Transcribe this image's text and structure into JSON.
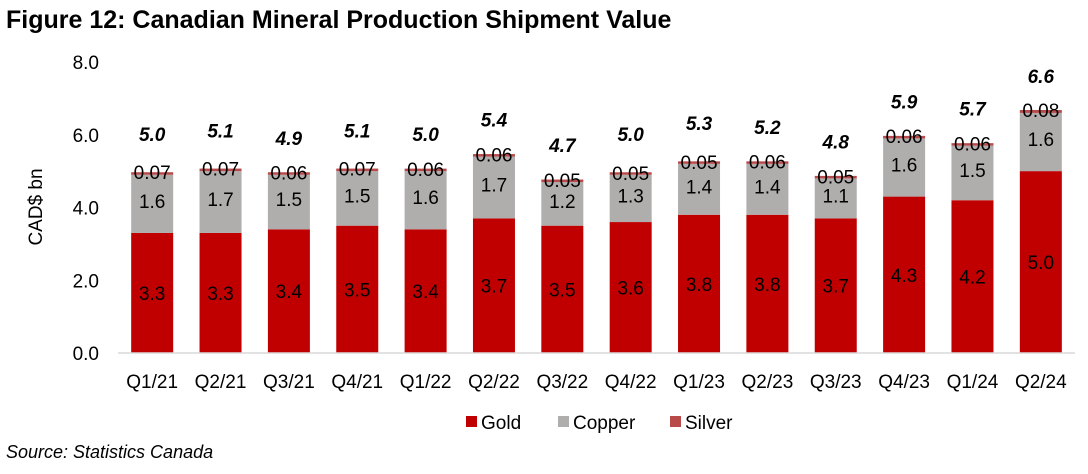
{
  "title": "Figure 12: Canadian Mineral Production Shipment Value",
  "source": "Source: Statistics Canada",
  "colors": {
    "gold": "#c00000",
    "copper": "#b0adad",
    "silver": "#b84a4a",
    "axis": "#d9d9d9"
  },
  "chart_data": {
    "type": "bar",
    "stacked": true,
    "title": "Figure 12: Canadian Mineral Production Shipment Value",
    "xlabel": "",
    "ylabel": "CAD$ bn",
    "ylim": [
      0,
      8
    ],
    "yticks": [
      "0.0",
      "2.0",
      "4.0",
      "6.0",
      "8.0"
    ],
    "grid": false,
    "legend_position": "bottom",
    "categories": [
      "Q1/21",
      "Q2/21",
      "Q3/21",
      "Q4/21",
      "Q1/22",
      "Q2/22",
      "Q3/22",
      "Q4/22",
      "Q1/23",
      "Q2/23",
      "Q3/23",
      "Q4/23",
      "Q1/24",
      "Q2/24"
    ],
    "series": [
      {
        "name": "Gold",
        "values": [
          3.3,
          3.3,
          3.4,
          3.5,
          3.4,
          3.7,
          3.5,
          3.6,
          3.8,
          3.8,
          3.7,
          4.3,
          4.2,
          5.0
        ],
        "labels": [
          "3.3",
          "3.3",
          "3.4",
          "3.5",
          "3.4",
          "3.7",
          "3.5",
          "3.6",
          "3.8",
          "3.8",
          "3.7",
          "4.3",
          "4.2",
          "5.0"
        ]
      },
      {
        "name": "Copper",
        "values": [
          1.6,
          1.7,
          1.5,
          1.5,
          1.6,
          1.7,
          1.2,
          1.3,
          1.4,
          1.4,
          1.1,
          1.6,
          1.5,
          1.6
        ],
        "labels": [
          "1.6",
          "1.7",
          "1.5",
          "1.5",
          "1.6",
          "1.7",
          "1.2",
          "1.3",
          "1.4",
          "1.4",
          "1.1",
          "1.6",
          "1.5",
          "1.6"
        ]
      },
      {
        "name": "Silver",
        "values": [
          0.07,
          0.07,
          0.06,
          0.07,
          0.06,
          0.06,
          0.05,
          0.05,
          0.05,
          0.06,
          0.05,
          0.06,
          0.06,
          0.08
        ],
        "labels": [
          "0.07",
          "0.07",
          "0.06",
          "0.07",
          "0.06",
          "0.06",
          "0.05",
          "0.05",
          "0.05",
          "0.06",
          "0.05",
          "0.06",
          "0.06",
          "0.08"
        ]
      }
    ],
    "totals": [
      "5.0",
      "5.1",
      "4.9",
      "5.1",
      "5.0",
      "5.4",
      "4.7",
      "5.0",
      "5.3",
      "5.2",
      "4.8",
      "5.9",
      "5.7",
      "6.6"
    ],
    "total_values": [
      5.0,
      5.1,
      4.9,
      5.1,
      5.0,
      5.4,
      4.7,
      5.0,
      5.3,
      5.2,
      4.8,
      5.9,
      5.7,
      6.6
    ]
  }
}
